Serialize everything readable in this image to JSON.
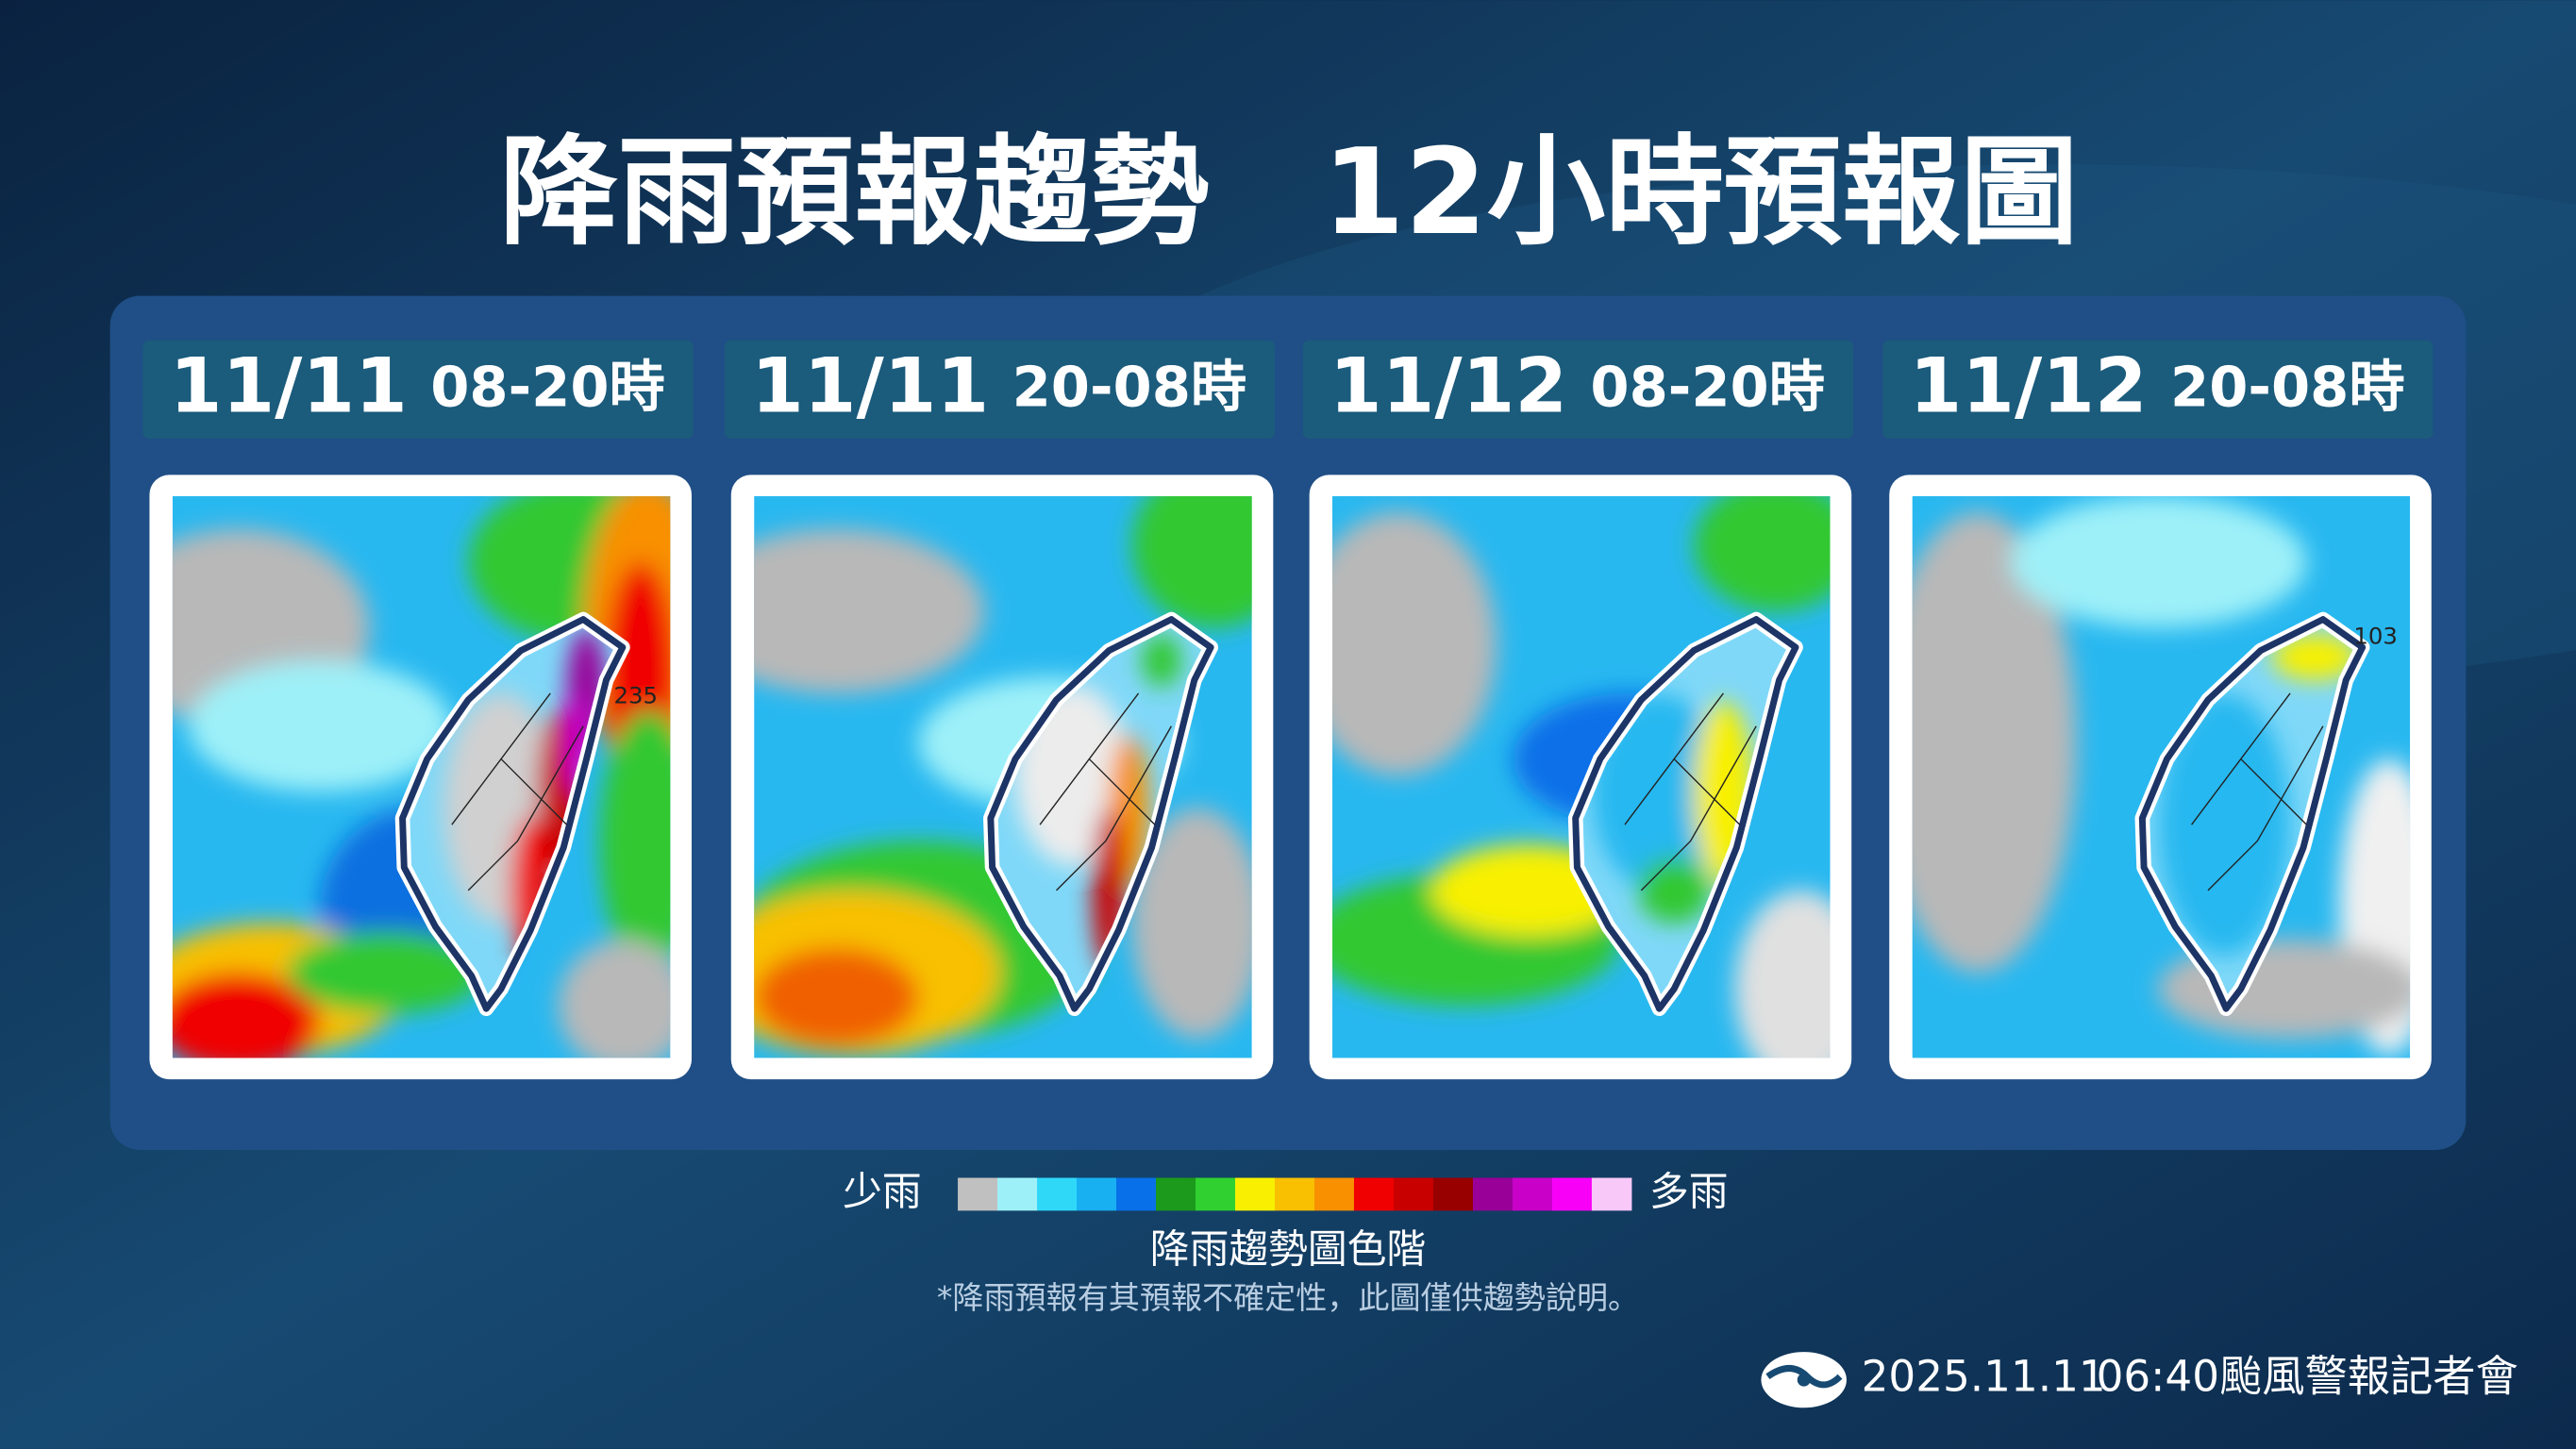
{
  "title": {
    "main": "降雨預報趨勢",
    "sub": "12小時預報圖"
  },
  "panels": [
    {
      "date": "11/11",
      "period": "08-20時",
      "map_label": "235"
    },
    {
      "date": "11/11",
      "period": "20-08時"
    },
    {
      "date": "11/12",
      "period": "08-20時"
    },
    {
      "date": "11/12",
      "period": "20-08時",
      "map_label": "103"
    }
  ],
  "legend": {
    "low": "少雨",
    "high": "多雨",
    "title": "降雨趨勢圖色階",
    "colors": [
      "#c0c0c0",
      "#9ef0f8",
      "#30d8f8",
      "#18b0f0",
      "#0870e8",
      "#1c9a1c",
      "#30d030",
      "#f8f000",
      "#f8c000",
      "#f89000",
      "#f00000",
      "#c80000",
      "#980000",
      "#980098",
      "#c800c8",
      "#f800f8",
      "#f8c8f8"
    ]
  },
  "note": "*降雨預報有其預報不確定性，此圖僅供趨勢說明。",
  "footer": {
    "date": "2025.11.11",
    "event": "06:40颱風警報記者會"
  }
}
